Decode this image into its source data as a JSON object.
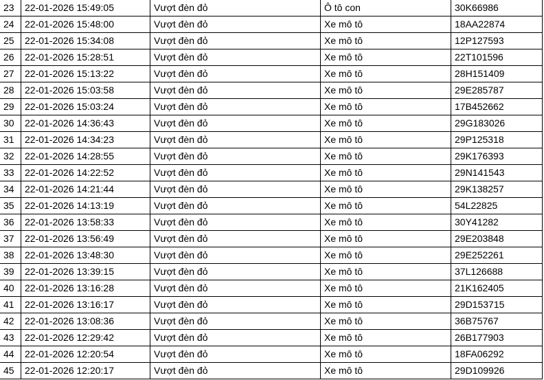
{
  "rows": [
    {
      "no": "23",
      "time": "22-01-2026 15:49:05",
      "violation": "Vượt đèn đỏ",
      "vehicle": "Ô tô con",
      "plate": "30K66986"
    },
    {
      "no": "24",
      "time": "22-01-2026 15:48:00",
      "violation": "Vượt đèn đỏ",
      "vehicle": "Xe mô tô",
      "plate": "18AA22874"
    },
    {
      "no": "25",
      "time": "22-01-2026 15:34:08",
      "violation": "Vượt đèn đỏ",
      "vehicle": "Xe mô tô",
      "plate": "12P127593"
    },
    {
      "no": "26",
      "time": "22-01-2026 15:28:51",
      "violation": "Vượt đèn đỏ",
      "vehicle": "Xe mô tô",
      "plate": "22T101596"
    },
    {
      "no": "27",
      "time": "22-01-2026 15:13:22",
      "violation": "Vượt đèn đỏ",
      "vehicle": "Xe mô tô",
      "plate": "28H151409"
    },
    {
      "no": "28",
      "time": "22-01-2026 15:03:58",
      "violation": "Vượt đèn đỏ",
      "vehicle": "Xe mô tô",
      "plate": "29E285787"
    },
    {
      "no": "29",
      "time": "22-01-2026 15:03:24",
      "violation": "Vượt đèn đỏ",
      "vehicle": "Xe mô tô",
      "plate": "17B452662"
    },
    {
      "no": "30",
      "time": "22-01-2026 14:36:43",
      "violation": "Vượt đèn đỏ",
      "vehicle": "Xe mô tô",
      "plate": "29G183026"
    },
    {
      "no": "31",
      "time": "22-01-2026 14:34:23",
      "violation": "Vượt đèn đỏ",
      "vehicle": "Xe mô tô",
      "plate": "29P125318"
    },
    {
      "no": "32",
      "time": "22-01-2026 14:28:55",
      "violation": "Vượt đèn đỏ",
      "vehicle": "Xe mô tô",
      "plate": "29K176393"
    },
    {
      "no": "33",
      "time": "22-01-2026 14:22:52",
      "violation": "Vượt đèn đỏ",
      "vehicle": "Xe mô tô",
      "plate": "29N141543"
    },
    {
      "no": "34",
      "time": "22-01-2026 14:21:44",
      "violation": "Vượt đèn đỏ",
      "vehicle": "Xe mô tô",
      "plate": "29K138257"
    },
    {
      "no": "35",
      "time": "22-01-2026 14:13:19",
      "violation": "Vượt đèn đỏ",
      "vehicle": "Xe mô tô",
      "plate": "54L22825"
    },
    {
      "no": "36",
      "time": "22-01-2026 13:58:33",
      "violation": "Vượt đèn đỏ",
      "vehicle": "Xe mô tô",
      "plate": "30Y41282"
    },
    {
      "no": "37",
      "time": "22-01-2026 13:56:49",
      "violation": "Vượt đèn đỏ",
      "vehicle": "Xe mô tô",
      "plate": "29E203848"
    },
    {
      "no": "38",
      "time": "22-01-2026 13:48:30",
      "violation": "Vượt đèn đỏ",
      "vehicle": "Xe mô tô",
      "plate": "29E252261"
    },
    {
      "no": "39",
      "time": "22-01-2026 13:39:15",
      "violation": "Vượt đèn đỏ",
      "vehicle": "Xe mô tô",
      "plate": "37L126688"
    },
    {
      "no": "40",
      "time": "22-01-2026 13:16:28",
      "violation": "Vượt đèn đỏ",
      "vehicle": "Xe mô tô",
      "plate": "21K162405"
    },
    {
      "no": "41",
      "time": "22-01-2026 13:16:17",
      "violation": "Vượt đèn đỏ",
      "vehicle": "Xe mô tô",
      "plate": "29D153715"
    },
    {
      "no": "42",
      "time": "22-01-2026 13:08:36",
      "violation": "Vượt đèn đỏ",
      "vehicle": "Xe mô tô",
      "plate": "36B75767"
    },
    {
      "no": "43",
      "time": "22-01-2026 12:29:42",
      "violation": "Vượt đèn đỏ",
      "vehicle": "Xe mô tô",
      "plate": "26B177903"
    },
    {
      "no": "44",
      "time": "22-01-2026 12:20:54",
      "violation": "Vượt đèn đỏ",
      "vehicle": "Xe mô tô",
      "plate": "18FA06292"
    },
    {
      "no": "45",
      "time": "22-01-2026 12:20:17",
      "violation": "Vượt đèn đỏ",
      "vehicle": "Xe mô tô",
      "plate": "29D109926"
    }
  ]
}
